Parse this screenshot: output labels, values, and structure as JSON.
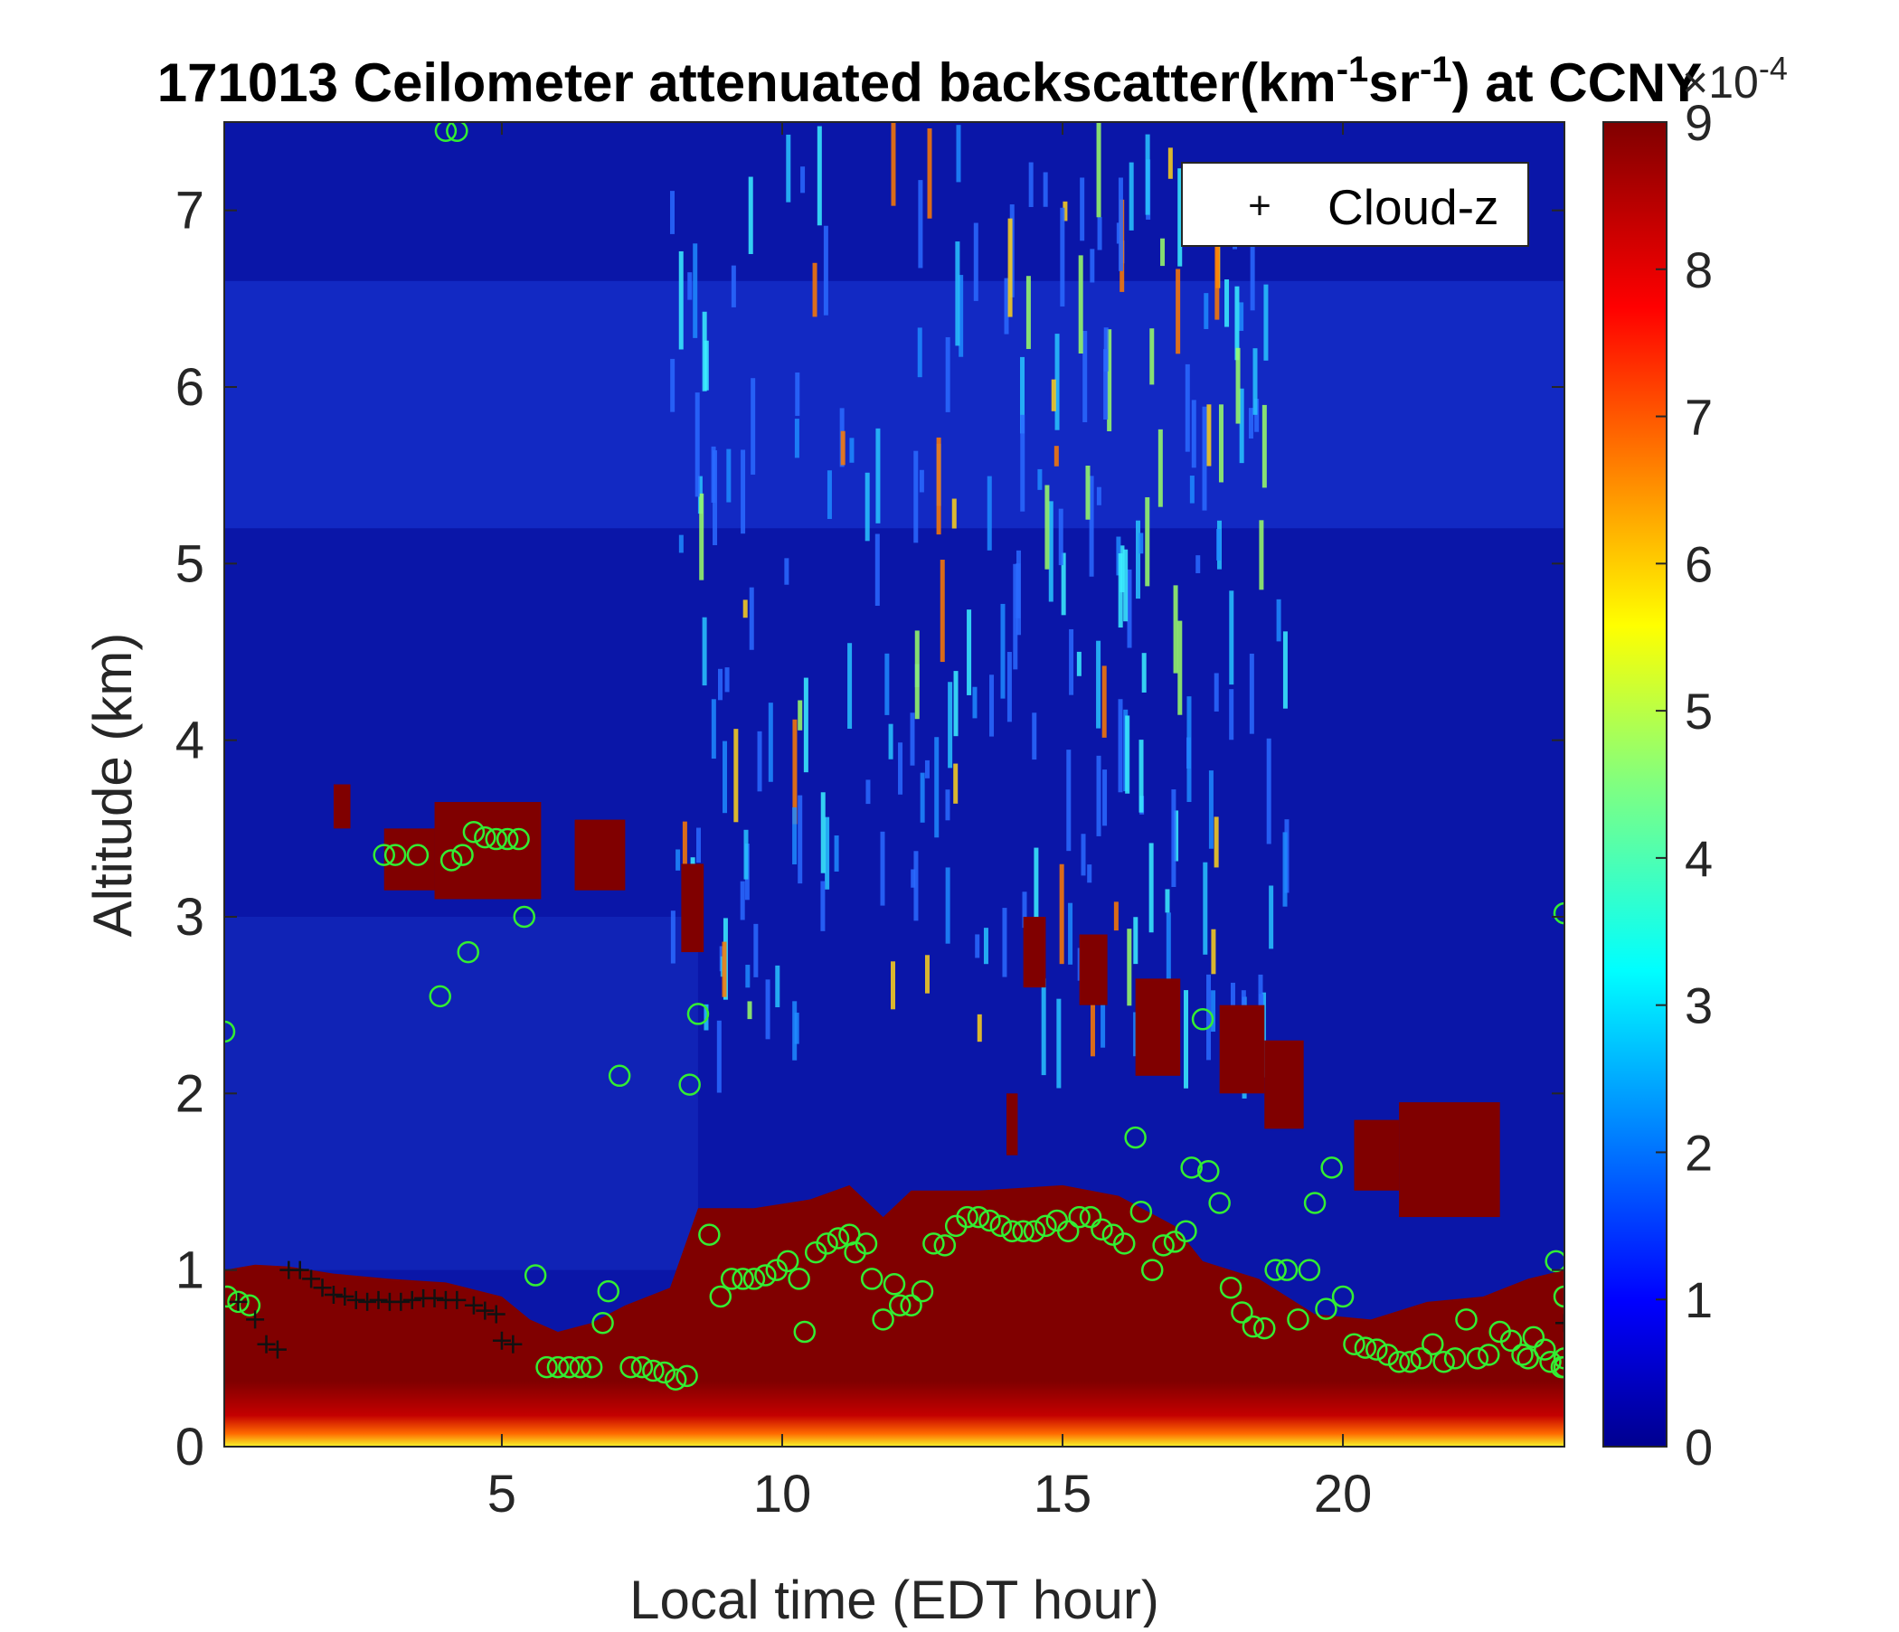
{
  "chart_data": {
    "type": "heatmap",
    "title_parts": [
      "171013 Ceilometer attenuated backscatter(km",
      "-1",
      "sr",
      "-1",
      ") at CCNY"
    ],
    "xlabel": "Local time (EDT hour)",
    "ylabel": "Altitude (km)",
    "xlim": [
      0.05,
      23.95
    ],
    "ylim": [
      0,
      7.5
    ],
    "xticks": [
      5,
      10,
      15,
      20
    ],
    "xtick_labels": [
      "5",
      "10",
      "15",
      "20"
    ],
    "yticks": [
      0,
      1,
      2,
      3,
      4,
      5,
      6,
      7
    ],
    "ytick_labels": [
      "0",
      "1",
      "2",
      "3",
      "4",
      "5",
      "6",
      "7"
    ],
    "colorbar": {
      "colormap": "jet",
      "clim": [
        0,
        9
      ],
      "ticks": [
        0,
        1,
        2,
        3,
        4,
        5,
        6,
        7,
        8,
        9
      ],
      "tick_labels": [
        "0",
        "1",
        "2",
        "3",
        "4",
        "5",
        "6",
        "7",
        "8",
        "9"
      ],
      "exponent_base": "×10",
      "exponent": "-4"
    },
    "legend": {
      "placement": "top-right",
      "entries": [
        {
          "marker": "+",
          "label": "Cloud-z"
        }
      ]
    },
    "colors": {
      "background_field": "#0a16a8",
      "saturated": "#800000",
      "circle_marker": "#33ee33",
      "plus_marker": "#111111"
    },
    "boundary_layer_top_km": [
      [
        0.05,
        1.0
      ],
      [
        0.6,
        1.03
      ],
      [
        1.2,
        1.02
      ],
      [
        2.0,
        0.98
      ],
      [
        3.0,
        0.95
      ],
      [
        4.0,
        0.93
      ],
      [
        5.0,
        0.85
      ],
      [
        5.5,
        0.72
      ],
      [
        6.0,
        0.65
      ],
      [
        6.6,
        0.7
      ],
      [
        7.2,
        0.8
      ],
      [
        8.0,
        0.9
      ],
      [
        8.5,
        1.35
      ],
      [
        9.5,
        1.35
      ],
      [
        10.5,
        1.4
      ],
      [
        11.2,
        1.48
      ],
      [
        11.8,
        1.3
      ],
      [
        12.3,
        1.45
      ],
      [
        13.5,
        1.45
      ],
      [
        15.0,
        1.48
      ],
      [
        16.0,
        1.42
      ],
      [
        17.0,
        1.25
      ],
      [
        17.5,
        1.05
      ],
      [
        18.5,
        0.95
      ],
      [
        19.5,
        0.75
      ],
      [
        20.5,
        0.72
      ],
      [
        21.5,
        0.82
      ],
      [
        22.5,
        0.85
      ],
      [
        23.3,
        0.95
      ],
      [
        23.95,
        1.0
      ]
    ],
    "cloud_patches": [
      {
        "x": [
          2.0,
          2.3
        ],
        "y": [
          3.5,
          3.75
        ]
      },
      {
        "x": [
          2.9,
          3.8
        ],
        "y": [
          3.15,
          3.5
        ]
      },
      {
        "x": [
          3.8,
          5.7
        ],
        "y": [
          3.1,
          3.65
        ]
      },
      {
        "x": [
          6.3,
          7.2
        ],
        "y": [
          3.15,
          3.55
        ]
      },
      {
        "x": [
          8.2,
          8.6
        ],
        "y": [
          2.8,
          3.3
        ]
      },
      {
        "x": [
          14.3,
          14.7
        ],
        "y": [
          2.6,
          3.0
        ]
      },
      {
        "x": [
          15.3,
          15.8
        ],
        "y": [
          2.5,
          2.9
        ]
      },
      {
        "x": [
          16.3,
          17.1
        ],
        "y": [
          2.1,
          2.65
        ]
      },
      {
        "x": [
          17.8,
          18.6
        ],
        "y": [
          2.0,
          2.5
        ]
      },
      {
        "x": [
          18.6,
          19.3
        ],
        "y": [
          1.8,
          2.3
        ]
      },
      {
        "x": [
          20.2,
          21.0
        ],
        "y": [
          1.45,
          1.85
        ]
      },
      {
        "x": [
          21.0,
          22.8
        ],
        "y": [
          1.3,
          1.95
        ]
      },
      {
        "x": [
          14.0,
          14.2
        ],
        "y": [
          1.65,
          2.0
        ]
      }
    ],
    "cloud_z_points": [
      [
        0.3,
        0.82
      ],
      [
        0.6,
        0.72
      ],
      [
        0.8,
        0.58
      ],
      [
        1.0,
        0.55
      ],
      [
        1.2,
        1.0
      ],
      [
        1.4,
        1.0
      ],
      [
        1.6,
        0.95
      ],
      [
        1.8,
        0.9
      ],
      [
        2.0,
        0.86
      ],
      [
        2.2,
        0.85
      ],
      [
        2.4,
        0.83
      ],
      [
        2.6,
        0.82
      ],
      [
        2.8,
        0.83
      ],
      [
        3.0,
        0.82
      ],
      [
        3.2,
        0.82
      ],
      [
        3.4,
        0.83
      ],
      [
        3.6,
        0.84
      ],
      [
        3.8,
        0.84
      ],
      [
        4.0,
        0.83
      ],
      [
        4.2,
        0.83
      ],
      [
        4.5,
        0.8
      ],
      [
        4.7,
        0.77
      ],
      [
        4.9,
        0.75
      ],
      [
        5.0,
        0.6
      ],
      [
        5.2,
        0.58
      ],
      [
        23.95,
        0.7
      ]
    ],
    "green_circles": [
      [
        0.05,
        2.35
      ],
      [
        0.1,
        0.85
      ],
      [
        0.3,
        0.82
      ],
      [
        0.5,
        0.8
      ],
      [
        2.9,
        3.35
      ],
      [
        3.1,
        3.35
      ],
      [
        3.5,
        3.35
      ],
      [
        3.9,
        2.55
      ],
      [
        4.1,
        3.32
      ],
      [
        4.3,
        3.35
      ],
      [
        4.4,
        2.8
      ],
      [
        4.5,
        3.48
      ],
      [
        4.7,
        3.45
      ],
      [
        4.9,
        3.44
      ],
      [
        5.1,
        3.44
      ],
      [
        5.3,
        3.44
      ],
      [
        5.4,
        3.0
      ],
      [
        5.6,
        0.97
      ],
      [
        5.8,
        0.45
      ],
      [
        6.0,
        0.45
      ],
      [
        6.2,
        0.45
      ],
      [
        6.4,
        0.45
      ],
      [
        6.6,
        0.45
      ],
      [
        6.8,
        0.7
      ],
      [
        6.9,
        0.88
      ],
      [
        7.1,
        2.1
      ],
      [
        7.3,
        0.45
      ],
      [
        7.5,
        0.45
      ],
      [
        7.7,
        0.43
      ],
      [
        7.9,
        0.42
      ],
      [
        8.1,
        0.38
      ],
      [
        8.3,
        0.4
      ],
      [
        8.35,
        2.05
      ],
      [
        8.5,
        2.45
      ],
      [
        8.7,
        1.2
      ],
      [
        8.9,
        0.85
      ],
      [
        9.1,
        0.95
      ],
      [
        9.3,
        0.95
      ],
      [
        9.5,
        0.95
      ],
      [
        9.7,
        0.97
      ],
      [
        9.9,
        1.0
      ],
      [
        10.1,
        1.05
      ],
      [
        10.3,
        0.95
      ],
      [
        10.4,
        0.65
      ],
      [
        10.6,
        1.1
      ],
      [
        10.8,
        1.15
      ],
      [
        11.0,
        1.18
      ],
      [
        11.2,
        1.2
      ],
      [
        11.3,
        1.1
      ],
      [
        11.5,
        1.15
      ],
      [
        11.6,
        0.95
      ],
      [
        11.8,
        0.72
      ],
      [
        12.0,
        0.92
      ],
      [
        12.1,
        0.8
      ],
      [
        12.3,
        0.8
      ],
      [
        12.5,
        0.88
      ],
      [
        12.7,
        1.15
      ],
      [
        12.9,
        1.14
      ],
      [
        13.1,
        1.25
      ],
      [
        13.3,
        1.3
      ],
      [
        13.5,
        1.3
      ],
      [
        13.7,
        1.28
      ],
      [
        13.9,
        1.25
      ],
      [
        14.1,
        1.22
      ],
      [
        14.3,
        1.22
      ],
      [
        14.5,
        1.22
      ],
      [
        14.7,
        1.25
      ],
      [
        14.9,
        1.28
      ],
      [
        15.1,
        1.22
      ],
      [
        15.3,
        1.3
      ],
      [
        15.5,
        1.3
      ],
      [
        15.7,
        1.23
      ],
      [
        15.9,
        1.2
      ],
      [
        16.1,
        1.15
      ],
      [
        16.3,
        1.75
      ],
      [
        16.4,
        1.33
      ],
      [
        16.6,
        1.0
      ],
      [
        16.8,
        1.14
      ],
      [
        17.0,
        1.16
      ],
      [
        17.2,
        1.22
      ],
      [
        17.3,
        1.58
      ],
      [
        17.5,
        2.42
      ],
      [
        17.6,
        1.56
      ],
      [
        17.8,
        1.38
      ],
      [
        18.0,
        0.9
      ],
      [
        18.2,
        0.76
      ],
      [
        18.4,
        0.68
      ],
      [
        18.6,
        0.67
      ],
      [
        18.8,
        1.0
      ],
      [
        19.0,
        1.0
      ],
      [
        19.2,
        0.72
      ],
      [
        19.4,
        1.0
      ],
      [
        19.5,
        1.38
      ],
      [
        19.7,
        0.78
      ],
      [
        19.8,
        1.58
      ],
      [
        20.0,
        0.85
      ],
      [
        20.2,
        0.58
      ],
      [
        20.4,
        0.56
      ],
      [
        20.6,
        0.55
      ],
      [
        20.8,
        0.52
      ],
      [
        21.0,
        0.48
      ],
      [
        21.2,
        0.48
      ],
      [
        21.4,
        0.5
      ],
      [
        21.6,
        0.58
      ],
      [
        21.8,
        0.48
      ],
      [
        22.0,
        0.5
      ],
      [
        22.2,
        0.72
      ],
      [
        22.4,
        0.5
      ],
      [
        22.6,
        0.52
      ],
      [
        22.8,
        0.65
      ],
      [
        23.0,
        0.6
      ],
      [
        23.2,
        0.52
      ],
      [
        23.3,
        0.5
      ],
      [
        23.4,
        0.62
      ],
      [
        23.6,
        0.55
      ],
      [
        23.7,
        0.48
      ],
      [
        23.8,
        1.05
      ],
      [
        23.9,
        0.45
      ],
      [
        23.95,
        0.85
      ],
      [
        23.95,
        0.5
      ],
      [
        23.95,
        3.02
      ],
      [
        23.95,
        0.45
      ],
      [
        4.0,
        7.45
      ],
      [
        4.2,
        7.45
      ]
    ]
  }
}
